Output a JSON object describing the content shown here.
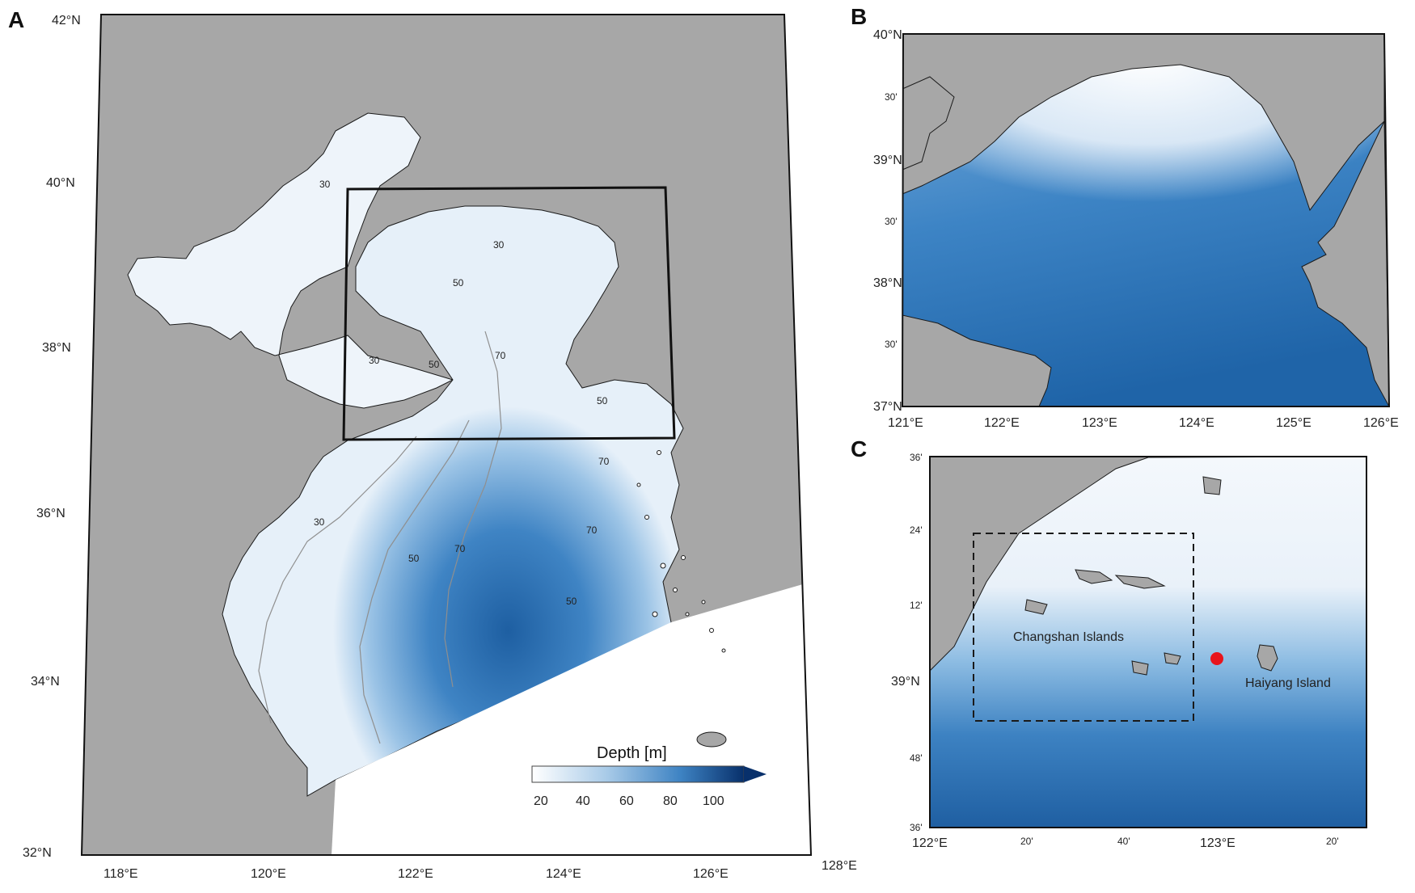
{
  "colors": {
    "land": "#a7a7a7",
    "water_shallow": "#f4f8fc",
    "water_deep": "#1b5fa3",
    "coast": "#1a1a1a",
    "box": "#111111",
    "marker": "#e8141c"
  },
  "panels": {
    "a": {
      "letter": "A"
    },
    "b": {
      "letter": "B"
    },
    "c": {
      "letter": "C"
    }
  },
  "panel_a": {
    "lat_labels": [
      "42°N",
      "40°N",
      "38°N",
      "36°N",
      "34°N",
      "32°N"
    ],
    "lon_labels": [
      "118°E",
      "120°E",
      "122°E",
      "124°E",
      "126°E",
      "128°E"
    ],
    "contour_labels": [
      "30",
      "50",
      "30",
      "50",
      "70",
      "30",
      "50",
      "70",
      "30",
      "50",
      "70",
      "50",
      "70"
    ],
    "colorbar": {
      "title": "Depth [m]",
      "ticks": [
        "20",
        "40",
        "60",
        "80",
        "100"
      ]
    }
  },
  "panel_b": {
    "lat_labels": [
      "40°N",
      "30'",
      "39°N",
      "30'",
      "38°N",
      "30'",
      "37°N"
    ],
    "lon_labels": [
      "121°E",
      "122°E",
      "123°E",
      "124°E",
      "125°E",
      "126°E"
    ]
  },
  "panel_c": {
    "lat_labels": [
      "36'",
      "24'",
      "12'",
      "39°N",
      "48'",
      "36'"
    ],
    "lon_labels": [
      "122°E",
      "20'",
      "40'",
      "123°E",
      "20'"
    ],
    "places": {
      "changshan": "Changshan Islands",
      "haiyang": "Haiyang Island"
    }
  }
}
